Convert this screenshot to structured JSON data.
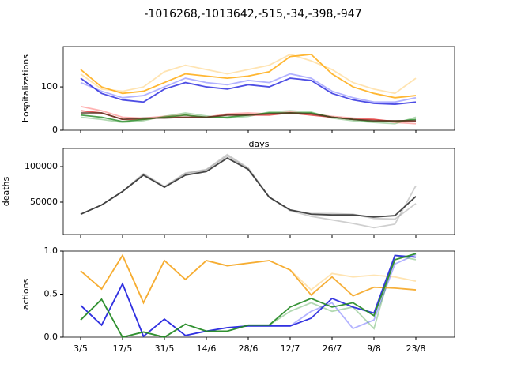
{
  "chart_data": [
    {
      "type": "line",
      "title": "-1016268,-1013642,-515,-34,-398,-947",
      "ylabel": "hospitalizations",
      "xlabel": "days",
      "ylim": [
        0,
        193
      ],
      "yticks": [
        0,
        100
      ],
      "series": [
        {
          "color": "#ffa500",
          "alpha": 0.3,
          "values": [
            130,
            95,
            90,
            100,
            135,
            150,
            140,
            130,
            140,
            150,
            175,
            160,
            140,
            110,
            95,
            85,
            120
          ]
        },
        {
          "color": "#0000ff",
          "alpha": 0.3,
          "values": [
            110,
            90,
            75,
            80,
            100,
            120,
            110,
            105,
            115,
            110,
            130,
            120,
            90,
            75,
            65,
            65,
            75
          ]
        },
        {
          "color": "#ff0000",
          "alpha": 0.3,
          "values": [
            55,
            45,
            30,
            28,
            32,
            35,
            30,
            38,
            40,
            38,
            42,
            38,
            32,
            28,
            25,
            18,
            15
          ]
        },
        {
          "color": "#008000",
          "alpha": 0.3,
          "values": [
            30,
            25,
            18,
            22,
            32,
            40,
            33,
            28,
            32,
            42,
            45,
            42,
            28,
            22,
            18,
            15,
            30
          ]
        },
        {
          "color": "#ffa500",
          "alpha": 0.8,
          "values": [
            140,
            100,
            85,
            90,
            110,
            130,
            125,
            120,
            125,
            135,
            170,
            175,
            130,
            100,
            85,
            75,
            80
          ]
        },
        {
          "color": "#2222dd",
          "alpha": 0.8,
          "values": [
            120,
            85,
            70,
            65,
            95,
            110,
            100,
            95,
            105,
            100,
            120,
            115,
            85,
            70,
            62,
            60,
            65
          ]
        },
        {
          "color": "#dd3333",
          "alpha": 0.8,
          "values": [
            45,
            40,
            25,
            25,
            30,
            30,
            30,
            35,
            35,
            35,
            40,
            35,
            30,
            25,
            25,
            20,
            20
          ]
        },
        {
          "color": "#228822",
          "alpha": 0.8,
          "values": [
            35,
            30,
            20,
            25,
            30,
            35,
            30,
            30,
            35,
            40,
            40,
            40,
            30,
            25,
            20,
            20,
            25
          ]
        },
        {
          "color": "#553322",
          "alpha": 0.8,
          "values": [
            40,
            40,
            25,
            28,
            28,
            30,
            30,
            35,
            35,
            38,
            40,
            38,
            30,
            25,
            22,
            22,
            22
          ]
        }
      ]
    },
    {
      "type": "line",
      "ylabel": "deaths",
      "ylim": [
        4400,
        125600
      ],
      "yticks": [
        50000,
        100000
      ],
      "series": [
        {
          "color": "#888888",
          "alpha": 0.4,
          "values": [
            33000,
            46000,
            65000,
            90000,
            72000,
            91000,
            96000,
            117000,
            98000,
            57000,
            38000,
            30000,
            25000,
            20000,
            14000,
            19000,
            73000
          ]
        },
        {
          "color": "#888888",
          "alpha": 0.4,
          "values": [
            33000,
            46000,
            65000,
            89000,
            71000,
            90000,
            95000,
            115000,
            97000,
            57000,
            39000,
            34000,
            34000,
            33000,
            27000,
            26000,
            48000
          ]
        },
        {
          "color": "#333333",
          "alpha": 0.9,
          "values": [
            33000,
            46000,
            65000,
            88000,
            71000,
            88000,
            93000,
            112000,
            96000,
            57000,
            39000,
            33000,
            32000,
            32000,
            29000,
            31000,
            58000
          ]
        }
      ]
    },
    {
      "type": "line",
      "ylabel": "actions",
      "ylim": [
        0,
        1
      ],
      "yticks": [
        {
          "value": 0,
          "label": "0.0"
        },
        {
          "value": 0.5,
          "label": "0.5"
        },
        {
          "value": 1,
          "label": "1.0"
        }
      ],
      "categories": [
        "3/5",
        null,
        "17/5",
        null,
        "31/5",
        null,
        "14/6",
        null,
        "28/6",
        null,
        "12/7",
        null,
        "26/7",
        null,
        "9/8",
        null,
        "23/8"
      ],
      "series": [
        {
          "color": "#ffa500",
          "alpha": 0.3,
          "values": [
            0.77,
            0.56,
            0.95,
            0.4,
            0.89,
            0.67,
            0.89,
            0.83,
            0.86,
            0.89,
            0.78,
            0.55,
            0.74,
            0.7,
            0.72,
            0.7,
            0.65
          ]
        },
        {
          "color": "#0000ff",
          "alpha": 0.3,
          "values": [
            0.37,
            0.14,
            0.62,
            0.01,
            0.21,
            0.02,
            0.07,
            0.11,
            0.13,
            0.13,
            0.13,
            0.3,
            0.4,
            0.1,
            0.2,
            0.85,
            0.96
          ]
        },
        {
          "color": "#008000",
          "alpha": 0.3,
          "values": [
            0.2,
            0.44,
            0.0,
            0.06,
            0.0,
            0.15,
            0.07,
            0.07,
            0.14,
            0.14,
            0.3,
            0.4,
            0.3,
            0.35,
            0.1,
            0.95,
            0.9
          ]
        },
        {
          "color": "#f5a623",
          "alpha": 0.9,
          "values": [
            0.77,
            0.56,
            0.95,
            0.4,
            0.89,
            0.67,
            0.89,
            0.83,
            0.86,
            0.89,
            0.78,
            0.49,
            0.7,
            0.48,
            0.58,
            0.57,
            0.55
          ]
        },
        {
          "color": "#2222dd",
          "alpha": 0.9,
          "values": [
            0.37,
            0.14,
            0.62,
            0.01,
            0.21,
            0.02,
            0.07,
            0.11,
            0.13,
            0.13,
            0.13,
            0.22,
            0.45,
            0.35,
            0.28,
            0.95,
            0.93
          ]
        },
        {
          "color": "#228822",
          "alpha": 0.9,
          "values": [
            0.2,
            0.44,
            0.0,
            0.06,
            0.0,
            0.15,
            0.07,
            0.07,
            0.14,
            0.14,
            0.35,
            0.45,
            0.35,
            0.4,
            0.25,
            0.9,
            0.97
          ]
        }
      ]
    }
  ]
}
